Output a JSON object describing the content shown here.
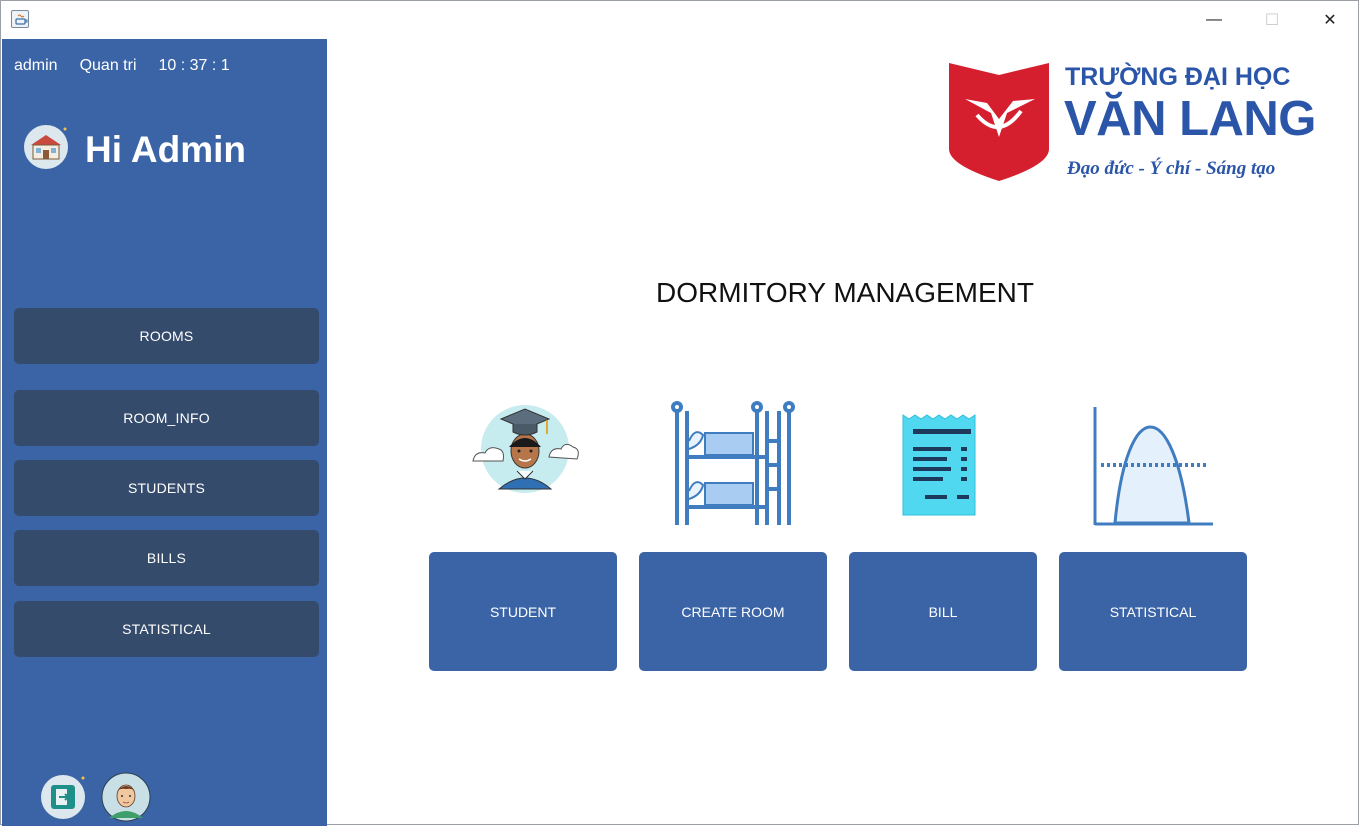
{
  "window": {
    "controls": {
      "minimize": "—",
      "maximize": "☐",
      "close": "✕"
    }
  },
  "sidebar": {
    "username": "admin",
    "role": "Quan tri",
    "clock": "10 : 37 : 1",
    "greeting": "Hi Admin",
    "items": [
      {
        "label": "ROOMS"
      },
      {
        "label": "ROOM_INFO"
      },
      {
        "label": "STUDENTS"
      },
      {
        "label": "BILLS"
      },
      {
        "label": "STATISTICAL"
      }
    ]
  },
  "logo": {
    "line1": "TRƯỜNG ĐẠI HỌC",
    "line2": "VĂN LANG",
    "motto": "Đạo đức - Ý chí - Sáng tạo"
  },
  "main": {
    "title": "DORMITORY MANAGEMENT",
    "tiles": [
      {
        "label": "STUDENT",
        "icon": "graduate-student-icon"
      },
      {
        "label": "CREATE ROOM",
        "icon": "bunk-bed-icon"
      },
      {
        "label": "BILL",
        "icon": "receipt-icon"
      },
      {
        "label": "STATISTICAL",
        "icon": "bell-curve-chart-icon"
      }
    ]
  },
  "colors": {
    "sidebar": "#3b64a6",
    "nav_button": "#354b6b",
    "tile_button": "#3b64a6",
    "logo_red": "#d51f2e",
    "logo_blue": "#2a55a8"
  }
}
